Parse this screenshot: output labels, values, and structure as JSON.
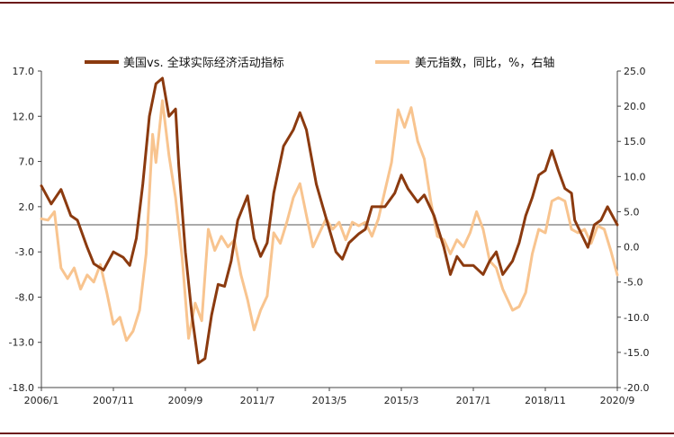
{
  "chart_data": {
    "type": "line",
    "x_ticks": [
      "2006/1",
      "2007/11",
      "2009/9",
      "2011/7",
      "2013/5",
      "2015/3",
      "2017/1",
      "2018/11",
      "2020/9"
    ],
    "x_range": [
      "2006-01",
      "2020-09"
    ],
    "left_axis": {
      "ticks": [
        "17.0",
        "12.0",
        "7.0",
        "2.0",
        "-3.0",
        "-8.0",
        "-13.0",
        "-18.0"
      ],
      "min": -18,
      "max": 17
    },
    "right_axis": {
      "ticks": [
        "25.0",
        "20.0",
        "15.0",
        "10.0",
        "5.0",
        "0.0",
        "-5.0",
        "-10.0",
        "-15.0",
        "-20.0"
      ],
      "min": -20,
      "max": 25
    },
    "legend_position": "top",
    "series": [
      {
        "name": "美国vs. 全球实际经济活动指标",
        "axis": "left",
        "color": "#8b3a0f",
        "points": [
          [
            "2006-01",
            4.3
          ],
          [
            "2006-04",
            2.3
          ],
          [
            "2006-07",
            3.9
          ],
          [
            "2006-10",
            1.0
          ],
          [
            "2006-12",
            0.5
          ],
          [
            "2007-03",
            -2.5
          ],
          [
            "2007-05",
            -4.3
          ],
          [
            "2007-08",
            -5.0
          ],
          [
            "2007-11",
            -3.0
          ],
          [
            "2008-02",
            -3.6
          ],
          [
            "2008-04",
            -4.5
          ],
          [
            "2008-06",
            -1.5
          ],
          [
            "2008-08",
            4.5
          ],
          [
            "2008-10",
            12.0
          ],
          [
            "2008-12",
            15.6
          ],
          [
            "2009-02",
            16.2
          ],
          [
            "2009-04",
            12.0
          ],
          [
            "2009-06",
            12.8
          ],
          [
            "2009-07",
            6.5
          ],
          [
            "2009-09",
            -3.0
          ],
          [
            "2009-11",
            -10.0
          ],
          [
            "2010-01",
            -15.3
          ],
          [
            "2010-03",
            -14.8
          ],
          [
            "2010-05",
            -10.0
          ],
          [
            "2010-07",
            -6.6
          ],
          [
            "2010-09",
            -6.8
          ],
          [
            "2010-11",
            -4.0
          ],
          [
            "2011-01",
            0.5
          ],
          [
            "2011-04",
            3.2
          ],
          [
            "2011-06",
            -1.5
          ],
          [
            "2011-08",
            -3.5
          ],
          [
            "2011-10",
            -2.0
          ],
          [
            "2011-12",
            3.5
          ],
          [
            "2012-03",
            8.7
          ],
          [
            "2012-06",
            10.5
          ],
          [
            "2012-08",
            12.4
          ],
          [
            "2012-10",
            10.5
          ],
          [
            "2013-01",
            4.5
          ],
          [
            "2013-03",
            2.0
          ],
          [
            "2013-05",
            -0.5
          ],
          [
            "2013-07",
            -3.0
          ],
          [
            "2013-09",
            -3.8
          ],
          [
            "2013-11",
            -2.0
          ],
          [
            "2014-02",
            -1.0
          ],
          [
            "2014-04",
            -0.5
          ],
          [
            "2014-06",
            2.0
          ],
          [
            "2014-08",
            2.0
          ],
          [
            "2014-10",
            2.0
          ],
          [
            "2015-01",
            3.5
          ],
          [
            "2015-03",
            5.5
          ],
          [
            "2015-05",
            4.0
          ],
          [
            "2015-08",
            2.5
          ],
          [
            "2015-10",
            3.3
          ],
          [
            "2016-01",
            1.0
          ],
          [
            "2016-04",
            -2.5
          ],
          [
            "2016-06",
            -5.5
          ],
          [
            "2016-08",
            -3.5
          ],
          [
            "2016-10",
            -4.5
          ],
          [
            "2017-01",
            -4.5
          ],
          [
            "2017-04",
            -5.5
          ],
          [
            "2017-06",
            -4.0
          ],
          [
            "2017-08",
            -3.0
          ],
          [
            "2017-10",
            -5.5
          ],
          [
            "2018-01",
            -4.0
          ],
          [
            "2018-03",
            -2.0
          ],
          [
            "2018-05",
            1.0
          ],
          [
            "2018-07",
            3.0
          ],
          [
            "2018-09",
            5.5
          ],
          [
            "2018-11",
            6.0
          ],
          [
            "2019-01",
            8.2
          ],
          [
            "2019-03",
            6.0
          ],
          [
            "2019-05",
            4.0
          ],
          [
            "2019-07",
            3.5
          ],
          [
            "2019-08",
            0.5
          ],
          [
            "2019-10",
            -1.0
          ],
          [
            "2019-12",
            -2.5
          ],
          [
            "2020-02",
            0.0
          ],
          [
            "2020-04",
            0.5
          ],
          [
            "2020-06",
            2.0
          ],
          [
            "2020-09",
            0.0
          ]
        ]
      },
      {
        "name": "美元指数，同比，%，右轴",
        "axis": "right",
        "color": "#f8c48f",
        "points": [
          [
            "2006-01",
            4.0
          ],
          [
            "2006-03",
            3.8
          ],
          [
            "2006-05",
            5.0
          ],
          [
            "2006-07",
            -3.0
          ],
          [
            "2006-09",
            -4.5
          ],
          [
            "2006-11",
            -3.0
          ],
          [
            "2007-01",
            -6.0
          ],
          [
            "2007-03",
            -4.0
          ],
          [
            "2007-05",
            -5.0
          ],
          [
            "2007-07",
            -2.5
          ],
          [
            "2007-09",
            -6.5
          ],
          [
            "2007-11",
            -11.0
          ],
          [
            "2008-01",
            -10.0
          ],
          [
            "2008-03",
            -13.3
          ],
          [
            "2008-05",
            -12.0
          ],
          [
            "2008-07",
            -9.0
          ],
          [
            "2008-09",
            -1.0
          ],
          [
            "2008-11",
            16.0
          ],
          [
            "2008-12",
            12.0
          ],
          [
            "2009-02",
            20.8
          ],
          [
            "2009-04",
            13.0
          ],
          [
            "2009-06",
            7.0
          ],
          [
            "2009-08",
            -1.5
          ],
          [
            "2009-10",
            -13.0
          ],
          [
            "2009-12",
            -8.0
          ],
          [
            "2010-02",
            -10.5
          ],
          [
            "2010-04",
            2.5
          ],
          [
            "2010-06",
            -0.5
          ],
          [
            "2010-08",
            1.5
          ],
          [
            "2010-10",
            0.0
          ],
          [
            "2010-12",
            1.0
          ],
          [
            "2011-02",
            -4.0
          ],
          [
            "2011-04",
            -7.5
          ],
          [
            "2011-06",
            -11.8
          ],
          [
            "2011-08",
            -9.0
          ],
          [
            "2011-10",
            -7.0
          ],
          [
            "2011-12",
            2.0
          ],
          [
            "2012-02",
            0.5
          ],
          [
            "2012-04",
            3.5
          ],
          [
            "2012-06",
            7.0
          ],
          [
            "2012-08",
            9.0
          ],
          [
            "2012-10",
            4.5
          ],
          [
            "2012-12",
            0.0
          ],
          [
            "2013-02",
            2.0
          ],
          [
            "2013-04",
            4.0
          ],
          [
            "2013-06",
            2.5
          ],
          [
            "2013-08",
            3.5
          ],
          [
            "2013-10",
            1.0
          ],
          [
            "2013-12",
            3.5
          ],
          [
            "2014-02",
            3.0
          ],
          [
            "2014-04",
            3.5
          ],
          [
            "2014-06",
            1.5
          ],
          [
            "2014-08",
            4.0
          ],
          [
            "2014-10",
            8.0
          ],
          [
            "2014-12",
            12.0
          ],
          [
            "2015-02",
            19.5
          ],
          [
            "2015-04",
            17.0
          ],
          [
            "2015-06",
            19.8
          ],
          [
            "2015-08",
            15.0
          ],
          [
            "2015-10",
            12.5
          ],
          [
            "2015-12",
            6.5
          ],
          [
            "2016-02",
            1.5
          ],
          [
            "2016-04",
            1.0
          ],
          [
            "2016-06",
            -1.0
          ],
          [
            "2016-08",
            1.0
          ],
          [
            "2016-10",
            0.0
          ],
          [
            "2016-12",
            2.0
          ],
          [
            "2017-02",
            5.0
          ],
          [
            "2017-04",
            2.5
          ],
          [
            "2017-06",
            -2.0
          ],
          [
            "2017-08",
            -3.0
          ],
          [
            "2017-10",
            -6.0
          ],
          [
            "2018-01",
            -9.0
          ],
          [
            "2018-03",
            -8.5
          ],
          [
            "2018-05",
            -6.5
          ],
          [
            "2018-07",
            -1.0
          ],
          [
            "2018-09",
            2.5
          ],
          [
            "2018-11",
            2.0
          ],
          [
            "2019-01",
            6.5
          ],
          [
            "2019-03",
            7.0
          ],
          [
            "2019-05",
            6.5
          ],
          [
            "2019-07",
            2.5
          ],
          [
            "2019-09",
            2.0
          ],
          [
            "2019-11",
            2.5
          ],
          [
            "2020-01",
            0.5
          ],
          [
            "2020-03",
            3.0
          ],
          [
            "2020-05",
            2.5
          ],
          [
            "2020-07",
            -0.5
          ],
          [
            "2020-09",
            -4.0
          ]
        ]
      }
    ]
  }
}
